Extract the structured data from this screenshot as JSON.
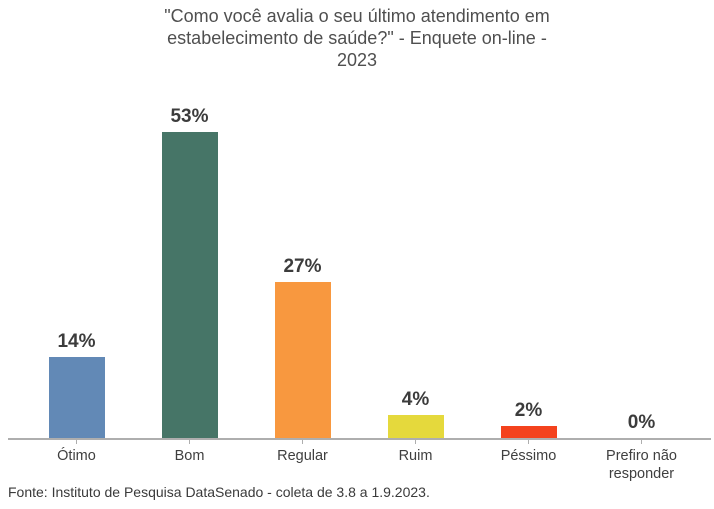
{
  "chart_data": {
    "type": "bar",
    "title": "\"Como você avalia o seu último atendimento em estabelecimento de saúde?\" - Enquete on-line - 2023",
    "title_lines": [
      "\"Como você avalia o seu último atendimento em",
      "estabelecimento de saúde?\" - Enquete on-line -",
      "2023"
    ],
    "categories": [
      "Ótimo",
      "Bom",
      "Regular",
      "Ruim",
      "Péssimo",
      "Prefiro não responder"
    ],
    "values": [
      14,
      53,
      27,
      4,
      2,
      0
    ],
    "value_labels": [
      "14%",
      "53%",
      "27%",
      "4%",
      "2%",
      "0%"
    ],
    "colors": [
      "#6289B6",
      "#467567",
      "#F8983F",
      "#E5D93C",
      "#F4421D",
      null
    ],
    "unit": "%",
    "ylim": [
      0,
      56
    ],
    "grid": false,
    "legend": null,
    "xlabel": "",
    "ylabel": ""
  },
  "footer": {
    "source": "Fonte: Instituto de Pesquisa DataSenado - coleta de 3.8 a 1.9.2023."
  }
}
